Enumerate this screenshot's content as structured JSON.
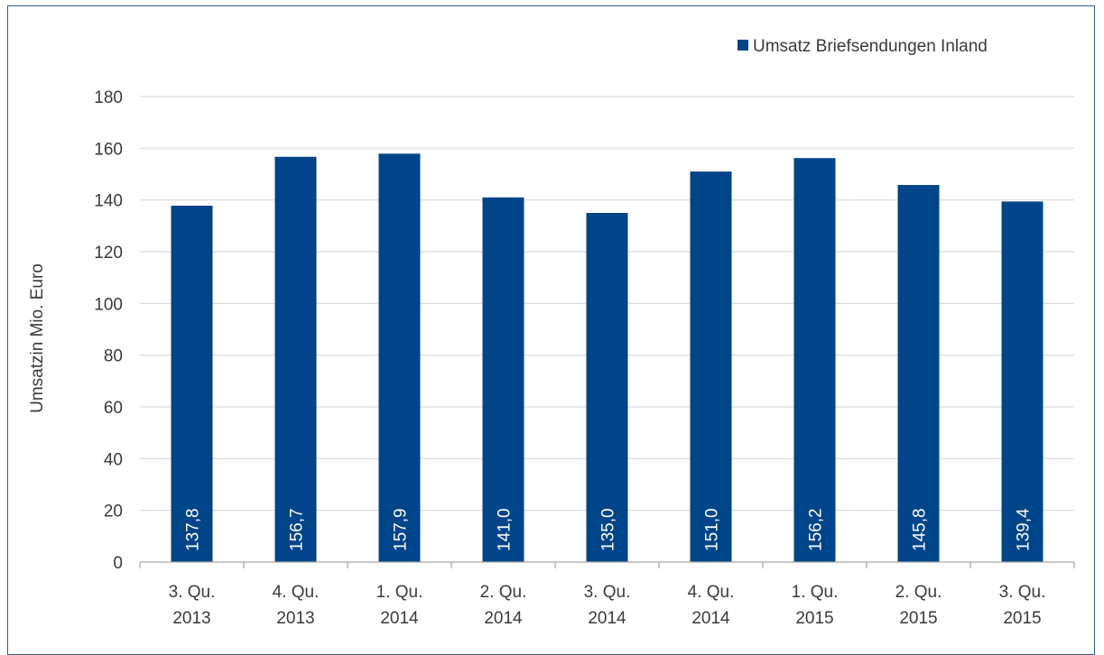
{
  "chart_data": {
    "type": "bar",
    "categories": [
      [
        "3. Qu.",
        "2013"
      ],
      [
        "4. Qu.",
        "2013"
      ],
      [
        "1. Qu.",
        "2014"
      ],
      [
        "2. Qu.",
        "2014"
      ],
      [
        "3. Qu.",
        "2014"
      ],
      [
        "4. Qu.",
        "2014"
      ],
      [
        "1. Qu.",
        "2015"
      ],
      [
        "2. Qu.",
        "2015"
      ],
      [
        "3. Qu.",
        "2015"
      ]
    ],
    "series": [
      {
        "name": "Umsatz Briefsendungen Inland",
        "values": [
          137.8,
          156.7,
          157.9,
          141.0,
          135.0,
          151.0,
          156.2,
          145.8,
          139.4
        ],
        "value_labels": [
          "137,8",
          "156,7",
          "157,9",
          "141,0",
          "135,0",
          "151,0",
          "156,2",
          "145,8",
          "139,4"
        ],
        "color": "#004489"
      }
    ],
    "ylabel": "Umsatzin Mio. Euro",
    "xlabel": "",
    "ylim": [
      0,
      180
    ],
    "yticks": [
      0,
      20,
      40,
      60,
      80,
      100,
      120,
      140,
      160,
      180
    ],
    "grid": true,
    "legend_position": "top-right",
    "gridline_color": "#d9d9d9",
    "frame_color": "#2e5d8f"
  }
}
